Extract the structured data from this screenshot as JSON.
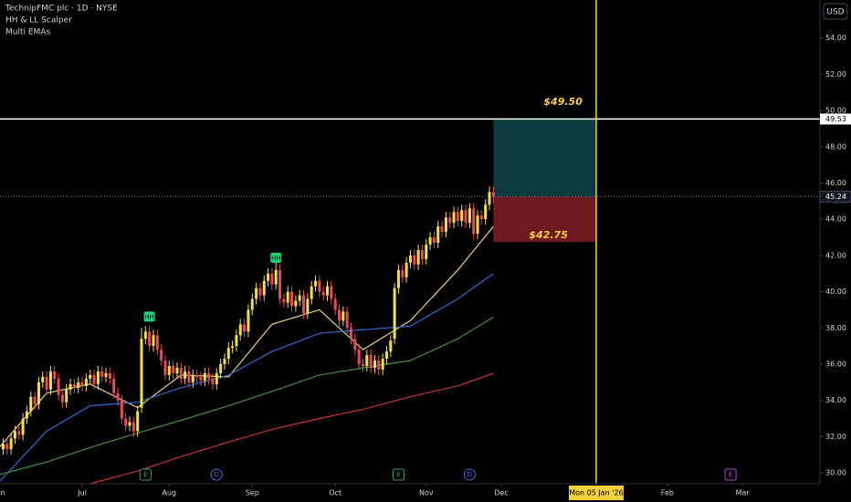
{
  "chart_data": {
    "type": "candlestick",
    "title": "TechnipFMC plc · 1D · NYSE",
    "indicators": [
      "HH & LL Scalper",
      "Multi EMAs"
    ],
    "currency": "USD",
    "xlim": [
      0.2,
      207.6
    ],
    "ylim": [
      29.4,
      56.1
    ],
    "grid": false,
    "xticks": [
      {
        "value": 0,
        "label": "Jun"
      },
      {
        "value": 21,
        "label": "Jul"
      },
      {
        "value": 43,
        "label": "Aug"
      },
      {
        "value": 64,
        "label": "Sep"
      },
      {
        "value": 85,
        "label": "Oct"
      },
      {
        "value": 108,
        "label": "Nov"
      },
      {
        "value": 127,
        "label": "Dec"
      },
      {
        "value": 169,
        "label": "Feb"
      },
      {
        "value": 188,
        "label": "Mar"
      }
    ],
    "yticks": [
      {
        "value": 30,
        "label": "30.00"
      },
      {
        "value": 32,
        "label": "32.00"
      },
      {
        "value": 34,
        "label": "34.00"
      },
      {
        "value": 36,
        "label": "36.00"
      },
      {
        "value": 38,
        "label": "38.00"
      },
      {
        "value": 40,
        "label": "40.00"
      },
      {
        "value": 42,
        "label": "42.00"
      },
      {
        "value": 44,
        "label": "44.00"
      },
      {
        "value": 46,
        "label": "46.00"
      },
      {
        "value": 48,
        "label": "48.00"
      },
      {
        "value": 50,
        "label": "50.00"
      },
      {
        "value": 52,
        "label": "52.00"
      },
      {
        "value": 54,
        "label": "54.00"
      }
    ],
    "up_color": "#f2de4b",
    "down_color": "#e8485c",
    "candles": {
      "x": [
        1,
        2,
        3,
        4,
        5,
        6,
        7,
        8,
        9,
        10,
        11,
        12,
        13,
        14,
        15,
        16,
        17,
        18,
        19,
        20,
        21,
        22,
        23,
        24,
        25,
        26,
        27,
        28,
        29,
        30,
        31,
        32,
        33,
        34,
        35,
        36,
        37,
        38,
        39,
        40,
        41,
        42,
        43,
        44,
        45,
        46,
        47,
        48,
        49,
        50,
        51,
        52,
        53,
        54,
        55,
        56,
        57,
        58,
        59,
        60,
        61,
        62,
        63,
        64,
        65,
        66,
        67,
        68,
        69,
        70,
        71,
        72,
        73,
        74,
        75,
        76,
        77,
        78,
        79,
        80,
        81,
        82,
        83,
        84,
        85,
        86,
        87,
        88,
        89,
        90,
        91,
        92,
        93,
        94,
        95,
        96,
        97,
        98,
        99,
        100,
        101,
        102,
        103,
        104,
        105,
        106,
        107,
        108,
        109,
        110,
        111,
        112,
        113,
        114,
        115,
        116,
        117,
        118,
        119,
        120,
        121,
        122,
        123,
        124,
        125
      ],
      "open": [
        31.3,
        31.6,
        31.3,
        31.9,
        32.3,
        32.1,
        33.0,
        33.4,
        34.2,
        33.8,
        35.0,
        35.3,
        34.6,
        35.6,
        35.2,
        34.3,
        33.9,
        34.6,
        34.9,
        34.7,
        35.0,
        34.8,
        35.2,
        35.4,
        34.9,
        35.6,
        35.3,
        35.5,
        35.2,
        34.4,
        34.0,
        33.0,
        32.6,
        32.8,
        32.3,
        33.6,
        37.4,
        37.8,
        37.0,
        37.6,
        36.8,
        36.2,
        35.4,
        35.9,
        35.5,
        35.8,
        35.2,
        35.6,
        35.0,
        35.4,
        35.3,
        35.1,
        35.5,
        35.2,
        34.9,
        35.5,
        36.0,
        36.3,
        36.9,
        37.0,
        37.6,
        38.2,
        37.8,
        39.0,
        39.6,
        40.2,
        39.8,
        40.6,
        41.0,
        40.4,
        41.2,
        39.6,
        39.4,
        40.0,
        39.2,
        39.5,
        39.8,
        38.8,
        39.6,
        40.3,
        40.6,
        40.0,
        39.8,
        40.3,
        39.6,
        39.0,
        38.4,
        38.9,
        38.0,
        37.4,
        36.8,
        36.0,
        35.9,
        36.5,
        35.8,
        36.2,
        35.7,
        36.3,
        36.7,
        37.4,
        40.2,
        41.2,
        40.8,
        41.6,
        42.0,
        41.5,
        42.3,
        41.8,
        42.6,
        43.0,
        42.7,
        43.6,
        43.3,
        44.1,
        43.8,
        44.4,
        43.9,
        44.5,
        43.8,
        44.6,
        43.2,
        44.2,
        44.0,
        44.8,
        45.5
      ],
      "high": [
        31.9,
        31.9,
        32.2,
        32.6,
        32.6,
        33.3,
        33.7,
        34.5,
        34.5,
        35.3,
        35.6,
        35.6,
        35.9,
        35.9,
        35.5,
        34.6,
        34.9,
        35.2,
        35.2,
        35.3,
        35.3,
        35.5,
        35.7,
        35.7,
        35.9,
        35.9,
        35.8,
        35.8,
        35.5,
        34.7,
        34.3,
        33.3,
        33.1,
        33.1,
        33.7,
        38.0,
        38.1,
        38.1,
        37.9,
        37.9,
        37.1,
        36.5,
        36.2,
        36.2,
        36.1,
        36.1,
        35.9,
        35.9,
        35.7,
        35.7,
        35.6,
        35.8,
        35.8,
        35.5,
        35.8,
        36.3,
        36.6,
        37.2,
        37.3,
        37.9,
        38.5,
        38.5,
        39.3,
        39.9,
        40.5,
        40.5,
        40.9,
        41.3,
        41.3,
        41.6,
        41.5,
        39.9,
        40.3,
        40.3,
        39.8,
        40.1,
        40.1,
        39.9,
        40.6,
        40.9,
        40.9,
        40.3,
        40.6,
        40.6,
        39.9,
        39.3,
        39.2,
        39.2,
        38.3,
        37.7,
        37.1,
        36.3,
        36.8,
        36.8,
        36.5,
        36.5,
        36.6,
        37.0,
        37.6,
        40.5,
        41.5,
        41.5,
        41.9,
        42.3,
        42.3,
        42.6,
        42.6,
        42.9,
        43.3,
        43.3,
        43.9,
        43.9,
        44.4,
        44.4,
        44.7,
        44.7,
        44.8,
        44.8,
        44.9,
        44.9,
        44.5,
        44.5,
        45.1,
        45.8,
        45.8
      ],
      "low": [
        31.0,
        31.0,
        31.0,
        31.6,
        31.8,
        31.8,
        32.7,
        33.1,
        33.5,
        33.5,
        34.7,
        34.3,
        34.3,
        34.9,
        34.0,
        33.6,
        33.6,
        34.3,
        34.4,
        34.4,
        34.5,
        34.5,
        34.9,
        34.6,
        34.6,
        35.0,
        35.0,
        34.9,
        34.1,
        33.7,
        32.7,
        32.3,
        32.3,
        32.0,
        32.0,
        33.3,
        37.1,
        36.7,
        36.7,
        36.5,
        35.9,
        35.1,
        35.1,
        35.2,
        35.2,
        34.9,
        34.9,
        34.7,
        34.7,
        35.0,
        34.8,
        34.8,
        34.9,
        34.6,
        34.6,
        35.2,
        35.7,
        36.0,
        36.6,
        36.7,
        37.3,
        37.5,
        37.5,
        38.7,
        39.3,
        39.5,
        39.5,
        40.3,
        40.1,
        40.1,
        39.3,
        39.1,
        39.1,
        38.9,
        38.9,
        39.2,
        38.5,
        38.5,
        39.3,
        40.0,
        39.7,
        39.5,
        39.5,
        39.3,
        38.7,
        38.1,
        38.1,
        37.7,
        37.1,
        36.5,
        35.7,
        35.6,
        35.6,
        35.5,
        35.5,
        35.4,
        35.4,
        36.0,
        36.4,
        37.1,
        39.9,
        40.5,
        40.5,
        41.3,
        41.2,
        41.2,
        41.5,
        41.5,
        42.3,
        42.4,
        42.4,
        43.0,
        43.0,
        43.5,
        43.5,
        43.6,
        43.6,
        43.5,
        43.5,
        42.9,
        42.9,
        43.7,
        43.7,
        44.5,
        44.9
      ],
      "close": [
        31.6,
        31.3,
        31.9,
        32.3,
        32.1,
        33.0,
        33.4,
        34.2,
        33.8,
        35.0,
        35.3,
        34.6,
        35.6,
        35.2,
        34.3,
        33.9,
        34.6,
        34.9,
        34.7,
        35.0,
        34.8,
        35.2,
        35.4,
        34.9,
        35.6,
        35.3,
        35.5,
        35.2,
        34.4,
        34.0,
        33.0,
        32.6,
        32.8,
        32.3,
        33.4,
        37.4,
        37.8,
        37.0,
        37.6,
        36.8,
        36.2,
        35.4,
        35.9,
        35.5,
        35.8,
        35.2,
        35.6,
        35.0,
        35.4,
        35.3,
        35.1,
        35.5,
        35.2,
        34.9,
        35.5,
        36.0,
        36.3,
        36.9,
        37.0,
        37.6,
        38.2,
        37.8,
        39.0,
        39.6,
        40.2,
        39.8,
        40.6,
        41.0,
        40.4,
        41.2,
        39.6,
        39.4,
        40.0,
        39.2,
        39.5,
        39.8,
        38.8,
        39.6,
        40.3,
        40.6,
        40.0,
        39.8,
        40.3,
        39.6,
        39.0,
        38.4,
        38.9,
        38.0,
        37.4,
        36.8,
        36.0,
        35.9,
        36.5,
        35.8,
        36.2,
        35.7,
        36.3,
        36.7,
        37.3,
        40.2,
        41.2,
        40.8,
        41.6,
        42.0,
        41.5,
        42.3,
        41.8,
        42.6,
        43.0,
        42.7,
        43.6,
        43.3,
        44.1,
        43.8,
        44.4,
        43.9,
        44.5,
        43.8,
        44.6,
        43.2,
        44.2,
        44.0,
        44.8,
        45.5,
        45.24
      ]
    },
    "lines": {
      "x": [
        0,
        12,
        23,
        35,
        46,
        58,
        69,
        81,
        92,
        104,
        116,
        125
      ],
      "series": [
        {
          "color": "#e6d36a",
          "values": [
            31.4,
            34.4,
            34.9,
            33.6,
            35.4,
            35.3,
            38.2,
            39.0,
            36.8,
            38.4,
            41.2,
            43.6
          ]
        },
        {
          "color": "#2e6bd6",
          "values": [
            29.5,
            32.3,
            33.7,
            33.9,
            34.7,
            35.4,
            36.7,
            37.7,
            37.9,
            38.1,
            39.6,
            41.0
          ]
        },
        {
          "color": "#3c8f44",
          "values": [
            29.9,
            30.6,
            31.4,
            32.2,
            32.9,
            33.7,
            34.5,
            35.4,
            35.8,
            36.2,
            37.4,
            38.6
          ]
        },
        {
          "color": "#c8323a",
          "values": [
            null,
            null,
            29.4,
            30.1,
            30.9,
            31.7,
            32.4,
            33.0,
            33.5,
            34.2,
            34.8,
            35.5
          ]
        }
      ]
    },
    "price_line": {
      "value": 49.53,
      "label": "49.53",
      "color": "#ffffff"
    },
    "last_price": {
      "value": 45.24,
      "label": "45.24"
    },
    "position": {
      "target": 49.5,
      "target_label": "$49.50",
      "stop": 42.75,
      "stop_label": "$42.75",
      "target_color": "#0c3b3f",
      "stop_color": "#6e1a20",
      "label_color": "#f2d03b"
    },
    "cursor": {
      "x": 151,
      "label": "Mon 05 Jan '26",
      "color": "#f2d03b"
    },
    "hh_markers": [
      {
        "x": 38,
        "y": 38.6,
        "label": "HH"
      },
      {
        "x": 70,
        "y": 41.85,
        "label": "HH"
      }
    ],
    "events": [
      {
        "x": 37,
        "label": "E",
        "color": "#1fa37a",
        "shape": "square"
      },
      {
        "x": 55,
        "label": "D",
        "color": "#3d6ee0",
        "shape": "circle"
      },
      {
        "x": 101,
        "label": "E",
        "color": "#1fa37a",
        "shape": "square"
      },
      {
        "x": 119,
        "label": "D",
        "color": "#3d6ee0",
        "shape": "circle"
      },
      {
        "x": 185,
        "label": "E",
        "color": "#c040e0",
        "shape": "square"
      }
    ]
  }
}
